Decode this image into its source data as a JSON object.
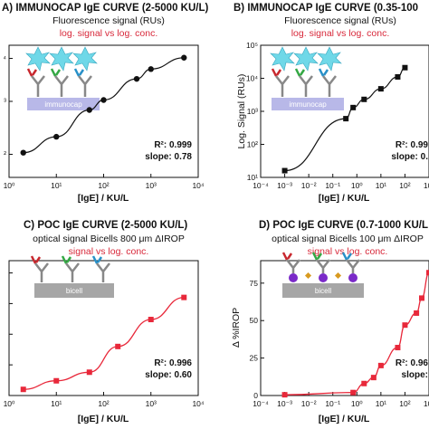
{
  "chart_data": [
    {
      "type": "line",
      "panel": "A",
      "title": "A) IMMUNOCAP IgE CURVE (2-5000 KU/L)",
      "subtitle": "Fluorescence signal (RUs)",
      "subtitle2": "log. signal vs log. conc.",
      "xlabel": "[IgE] / KU/L",
      "ylabel": "",
      "xscale": "log",
      "yscale": "log",
      "xlim": [
        1,
        10000
      ],
      "ylim": [
        0.1,
        1000
      ],
      "xticks": [
        "10⁰",
        "10¹",
        "10²",
        "10³",
        "10⁴"
      ],
      "yticks": [
        "²",
        "³",
        "⁴"
      ],
      "x": [
        2,
        10,
        50,
        100,
        500,
        1000,
        5000
      ],
      "y": [
        0.56,
        1.7,
        11,
        22,
        96,
        190,
        420
      ],
      "r2": "R²: 0.999",
      "slope": "slope: 0.78",
      "box_label": "immunocap",
      "marker": "circle",
      "color": "#111111"
    },
    {
      "type": "line",
      "panel": "B",
      "title": "B) IMMUNOCAP IgE CURVE (0.35-100",
      "subtitle": "Fluorescence signal (RUs)",
      "subtitle2": "log. signal vs log. conc.",
      "xlabel": "[IgE] / KU/L",
      "ylabel": "Log. Signal (RUs)",
      "xscale": "log",
      "yscale": "log",
      "xlim": [
        0.0001,
        1000
      ],
      "ylim": [
        10,
        100000
      ],
      "xticks": [
        "10⁻⁴",
        "10⁻³",
        "10⁻²",
        "10⁻¹",
        "10⁰",
        "10¹",
        "10²",
        "10³"
      ],
      "yticks": [
        "10¹",
        "10²",
        "10³",
        "10⁴",
        "10⁵"
      ],
      "x": [
        0.001,
        0.35,
        0.7,
        2,
        10,
        50,
        100
      ],
      "y": [
        16,
        600,
        1300,
        2300,
        4800,
        11000,
        21000
      ],
      "r2": "R²: 0.99",
      "slope": "slope: 0.",
      "box_label": "immunocap",
      "marker": "square",
      "color": "#111111"
    },
    {
      "type": "line",
      "panel": "C",
      "title": "C) POC IgE CURVE (2-5000 KU/L)",
      "subtitle": "optical signal Bicells 800 μm ΔIROP",
      "subtitle2": "signal vs log. conc.",
      "xlabel": "[IgE] / KU/L",
      "ylabel": "",
      "xscale": "log",
      "yscale": "linear",
      "xlim": [
        1,
        10000
      ],
      "ylim": [
        0,
        110
      ],
      "xticks": [
        "10⁰",
        "10¹",
        "10²",
        "10³",
        "10⁴"
      ],
      "yticks": [
        "",
        "",
        "",
        "",
        ""
      ],
      "x": [
        2,
        10,
        50,
        200,
        1000,
        5000
      ],
      "y": [
        5,
        12,
        19,
        40,
        62,
        80
      ],
      "r2": "R²: 0.996",
      "slope": "slope: 0.60",
      "box_label": "bicell",
      "marker": "square",
      "color": "#e8283a"
    },
    {
      "type": "line",
      "panel": "D",
      "title": "D) POC IgE CURVE (0.7-1000 KU/L",
      "subtitle": "optical signal Bicells 100 μm ΔIROP",
      "subtitle2": "signal vs log. conc.",
      "xlabel": "[IgE] / KU/L",
      "ylabel": "Δ %IROP",
      "xscale": "log",
      "yscale": "linear",
      "xlim": [
        0.0001,
        1000
      ],
      "ylim": [
        0,
        90
      ],
      "xticks": [
        "10⁻⁴",
        "10⁻³",
        "10⁻²",
        "10⁻¹",
        "10⁰",
        "10¹",
        "10²",
        "10³"
      ],
      "yticks": [
        "0",
        "25",
        "50",
        "75"
      ],
      "x": [
        0.001,
        0.7,
        2,
        5,
        10,
        50,
        100,
        300,
        500,
        1000
      ],
      "y": [
        0.5,
        2,
        8,
        12,
        20,
        32,
        47,
        55,
        65,
        82
      ],
      "r2": "R²: 0.96",
      "slope": "slope:",
      "box_label": "bicell",
      "marker": "square",
      "color": "#e8283a"
    }
  ],
  "colors": {
    "black": "#111111",
    "red": "#e8283a",
    "burst": "#6fd8e8",
    "box_a": "#b8b8e8",
    "box_c": "#a6a6a6"
  }
}
